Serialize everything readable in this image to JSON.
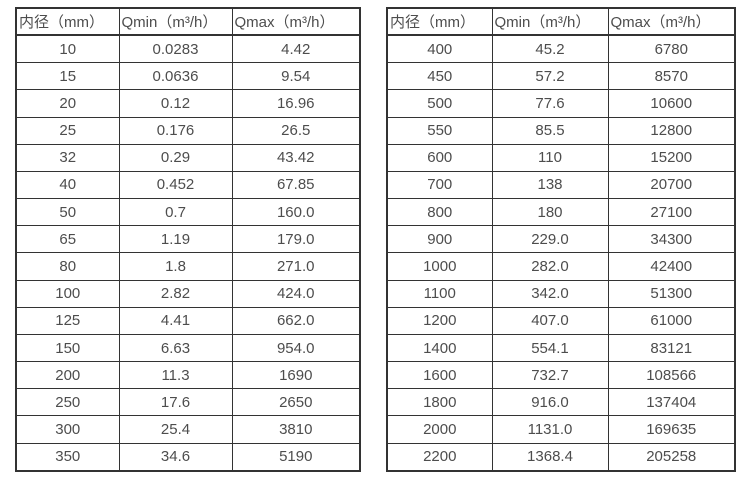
{
  "colors": {
    "background": "#ffffff",
    "border": "#333333",
    "text": "#4d4d4d"
  },
  "tables": [
    {
      "name": "small-diameter-flow-range-table",
      "headers": [
        "内径（mm）",
        "Qmin（m³/h）",
        "Qmax（m³/h）"
      ],
      "rows": [
        [
          "10",
          "0.0283",
          "4.42"
        ],
        [
          "15",
          "0.0636",
          "9.54"
        ],
        [
          "20",
          "0.12",
          "16.96"
        ],
        [
          "25",
          "0.176",
          "26.5"
        ],
        [
          "32",
          "0.29",
          "43.42"
        ],
        [
          "40",
          "0.452",
          "67.85"
        ],
        [
          "50",
          "0.7",
          "160.0"
        ],
        [
          "65",
          "1.19",
          "179.0"
        ],
        [
          "80",
          "1.8",
          "271.0"
        ],
        [
          "100",
          "2.82",
          "424.0"
        ],
        [
          "125",
          "4.41",
          "662.0"
        ],
        [
          "150",
          "6.63",
          "954.0"
        ],
        [
          "200",
          "11.3",
          "1690"
        ],
        [
          "250",
          "17.6",
          "2650"
        ],
        [
          "300",
          "25.4",
          "3810"
        ],
        [
          "350",
          "34.6",
          "5190"
        ]
      ]
    },
    {
      "name": "large-diameter-flow-range-table",
      "headers": [
        "内径（mm）",
        "Qmin（m³/h）",
        "Qmax（m³/h）"
      ],
      "rows": [
        [
          "400",
          "45.2",
          "6780"
        ],
        [
          "450",
          "57.2",
          "8570"
        ],
        [
          "500",
          "77.6",
          "10600"
        ],
        [
          "550",
          "85.5",
          "12800"
        ],
        [
          "600",
          "110",
          "15200"
        ],
        [
          "700",
          "138",
          "20700"
        ],
        [
          "800",
          "180",
          "27100"
        ],
        [
          "900",
          "229.0",
          "34300"
        ],
        [
          "1000",
          "282.0",
          "42400"
        ],
        [
          "1100",
          "342.0",
          "51300"
        ],
        [
          "1200",
          "407.0",
          "61000"
        ],
        [
          "1400",
          "554.1",
          "83121"
        ],
        [
          "1600",
          "732.7",
          "108566"
        ],
        [
          "1800",
          "916.0",
          "137404"
        ],
        [
          "2000",
          "1131.0",
          "169635"
        ],
        [
          "2200",
          "1368.4",
          "205258"
        ]
      ]
    }
  ]
}
